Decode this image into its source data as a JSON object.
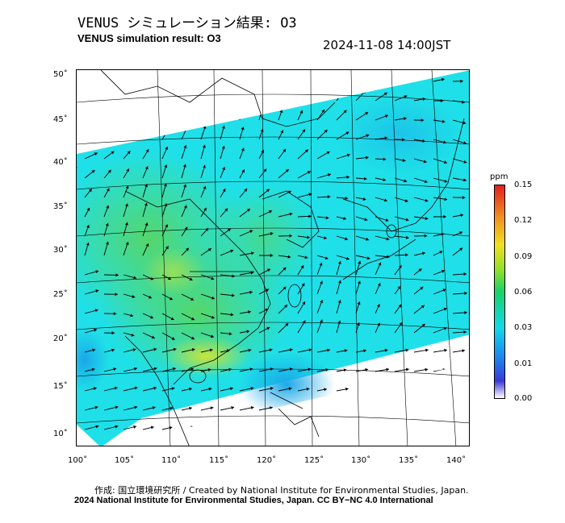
{
  "header": {
    "title_ja": "VENUS シミュレーション結果: O3",
    "title_en": "VENUS simulation result: O3",
    "timestamp": "2024-11-08 14:00JST"
  },
  "map": {
    "lon_labels": [
      "100˚",
      "105˚",
      "110˚",
      "115˚",
      "120˚",
      "125˚",
      "130˚",
      "135˚",
      "140˚"
    ],
    "lat_labels": [
      "50˚",
      "45˚",
      "40˚",
      "35˚",
      "30˚",
      "25˚",
      "20˚",
      "15˚",
      "10˚"
    ],
    "colorbar": {
      "unit": "ppm",
      "ticks": [
        "0.15",
        "0.12",
        "0.09",
        "0.06",
        "0.03",
        "0.01",
        "0.00"
      ]
    }
  },
  "footer": {
    "credit_ja": "作成: 国立環境研究所 / Created by National Institute for Environmental Studies, Japan.",
    "copyright": "2024 National Institute for Environmental Studies, Japan. CC BY−NC 4.0 International"
  }
}
